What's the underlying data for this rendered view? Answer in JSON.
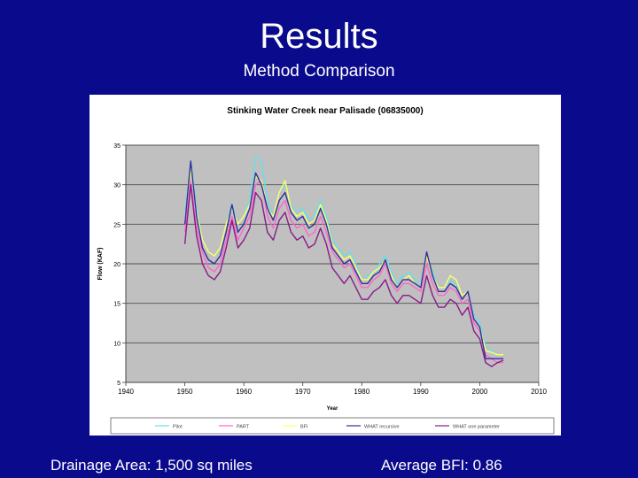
{
  "slide": {
    "title": "Results",
    "subtitle": "Method Comparison",
    "footer_left": "Drainage Area: 1,500 sq miles",
    "footer_right": "Average BFI: 0.86"
  },
  "colors": {
    "background": "#0a0a8c",
    "plot_area": "#c0c0c0",
    "pilot": "#66e0e8",
    "part": "#ff66cc",
    "bfi": "#ffff66",
    "what_recursive": "#3030a0",
    "what_one_param": "#8a1a8a"
  },
  "chart_data": {
    "type": "line",
    "title": "Stinking Water Creek near Palisade (06835000)",
    "xlabel": "Year",
    "ylabel": "Flow (KAF)",
    "xlim": [
      1940,
      2010
    ],
    "ylim": [
      5,
      35
    ],
    "xticks": [
      1940,
      1950,
      1960,
      1970,
      1980,
      1990,
      2000,
      2010
    ],
    "yticks": [
      5,
      10,
      15,
      20,
      25,
      30,
      35
    ],
    "grid": true,
    "legend_position": "bottom",
    "x": [
      1950,
      1951,
      1952,
      1953,
      1954,
      1955,
      1956,
      1957,
      1958,
      1959,
      1960,
      1961,
      1962,
      1963,
      1964,
      1965,
      1966,
      1967,
      1968,
      1969,
      1970,
      1971,
      1972,
      1973,
      1974,
      1975,
      1976,
      1977,
      1978,
      1979,
      1980,
      1981,
      1982,
      1983,
      1984,
      1985,
      1986,
      1987,
      1988,
      1989,
      1990,
      1991,
      1992,
      1993,
      1994,
      1995,
      1996,
      1997,
      1998,
      1999,
      2000,
      2001,
      2002,
      2003,
      2004
    ],
    "series": [
      {
        "name": "Pilot",
        "values": [
          26,
          33,
          27,
          23,
          21.5,
          21,
          22,
          25,
          27.5,
          25,
          26,
          28,
          33.5,
          33,
          28,
          26,
          29,
          30,
          27.5,
          26.5,
          27,
          25.5,
          26,
          28,
          26,
          23,
          22,
          21,
          21.5,
          20,
          18,
          18.5,
          19,
          20,
          21,
          19,
          17.5,
          18.5,
          19,
          18,
          17.5,
          21,
          19,
          17,
          17,
          18,
          17.5,
          16,
          16.5,
          13.5,
          12.5,
          9.5,
          9,
          8.5,
          8.5
        ]
      },
      {
        "name": "PART",
        "values": [
          24,
          30.5,
          24.5,
          21.5,
          19.5,
          19,
          20,
          23,
          26,
          23,
          24.5,
          26,
          30,
          30.5,
          26,
          24.5,
          27,
          28,
          25.5,
          24.5,
          25,
          23.5,
          24,
          26,
          24,
          21.5,
          20.5,
          19.5,
          20,
          18.5,
          17,
          17,
          18,
          18.5,
          20,
          17.5,
          16.5,
          17.5,
          17.5,
          17,
          16.5,
          20,
          17.5,
          16,
          16,
          17,
          16.5,
          15,
          15.5,
          12.5,
          11.5,
          8.5,
          8,
          7.5,
          7.5
        ]
      },
      {
        "name": "BFI",
        "values": [
          25.5,
          32,
          26.5,
          23,
          21.5,
          21,
          22,
          25,
          27,
          25,
          26,
          27.5,
          31,
          30.5,
          27,
          26,
          29,
          30.5,
          27,
          26,
          26.5,
          25,
          25.5,
          27.5,
          25.5,
          22.5,
          21.5,
          20.5,
          21,
          19.5,
          18,
          18,
          19,
          19.5,
          20.5,
          18.5,
          17,
          18,
          18.5,
          17.5,
          17,
          21,
          18.5,
          17,
          17,
          18.5,
          18,
          16,
          16.5,
          13,
          12,
          9,
          8.8,
          8.5,
          8.5
        ]
      },
      {
        "name": "WHAT recursive",
        "values": [
          25,
          33,
          26,
          22,
          20.5,
          20,
          21,
          24,
          27.5,
          24,
          25,
          27,
          31.5,
          30,
          27,
          25.5,
          28,
          29,
          26.5,
          25.5,
          26,
          24.5,
          25,
          27,
          25,
          22,
          21,
          20,
          20.5,
          19,
          17.5,
          17.5,
          18.5,
          19,
          20.5,
          18,
          17,
          18,
          18,
          17.5,
          17,
          21.5,
          18.5,
          16.5,
          16.5,
          17.5,
          17,
          15.5,
          16.5,
          13,
          12,
          8,
          8,
          8,
          8
        ]
      },
      {
        "name": "WHAT one parameter",
        "values": [
          22.5,
          30,
          23.5,
          20,
          18.5,
          18,
          19,
          22,
          25.5,
          22,
          23,
          24.5,
          29,
          28,
          24,
          23,
          25.5,
          26.5,
          24,
          23,
          23.5,
          22,
          22.5,
          24.5,
          22.5,
          19.5,
          18.5,
          17.5,
          18.5,
          17,
          15.5,
          15.5,
          16.5,
          17,
          18,
          16,
          15,
          16,
          16,
          15.5,
          15,
          18.5,
          16,
          14.5,
          14.5,
          15.5,
          15,
          13.5,
          14.5,
          11.5,
          10.5,
          7.5,
          7,
          7.5,
          7.8
        ]
      }
    ]
  }
}
